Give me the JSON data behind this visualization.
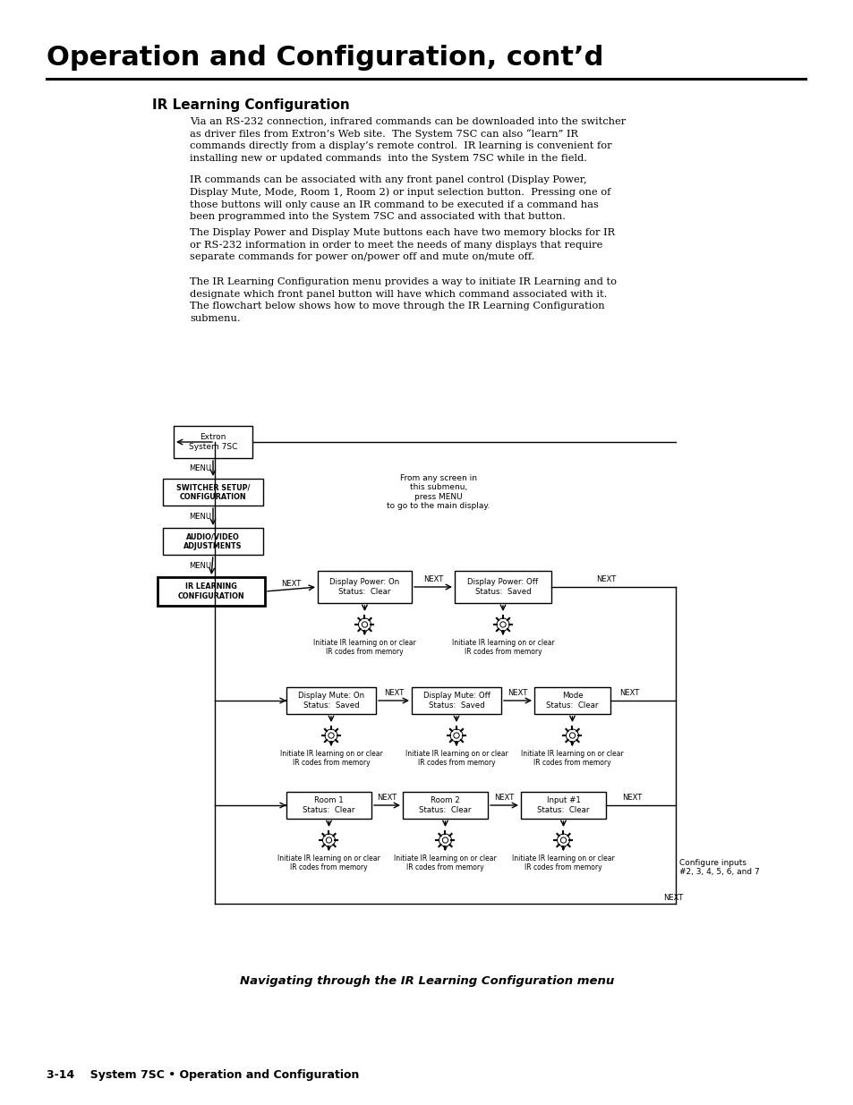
{
  "title": "Operation and Configuration, cont’d",
  "section_title": "IR Learning Configuration",
  "body_paragraphs": [
    "Via an RS-232 connection, infrared commands can be downloaded into the switcher\nas driver files from Extron’s Web site.  The System 7SC can also “learn” IR\ncommands directly from a display’s remote control.  IR learning is convenient for\ninstalling new or updated commands  into the System 7SC while in the field.",
    "IR commands can be associated with any front panel control (Display Power,\nDisplay Mute, Mode, Room 1, Room 2) or input selection button.  Pressing one of\nthose buttons will only cause an IR command to be executed if a command has\nbeen programmed into the System 7SC and associated with that button.",
    "The Display Power and Display Mute buttons each have two memory blocks for IR\nor RS-232 information in order to meet the needs of many displays that require\nseparate commands for power on/power off and mute on/mute off.",
    "The IR Learning Configuration menu provides a way to initiate IR Learning and to\ndesignate which front panel button will have which command associated with it.\nThe flowchart below shows how to move through the IR Learning Configuration\nsubmenu."
  ],
  "caption": "Navigating through the IR Learning Configuration menu",
  "footer": "3-14    System 7SC • Operation and Configuration",
  "bg_color": "#ffffff",
  "text_color": "#000000"
}
